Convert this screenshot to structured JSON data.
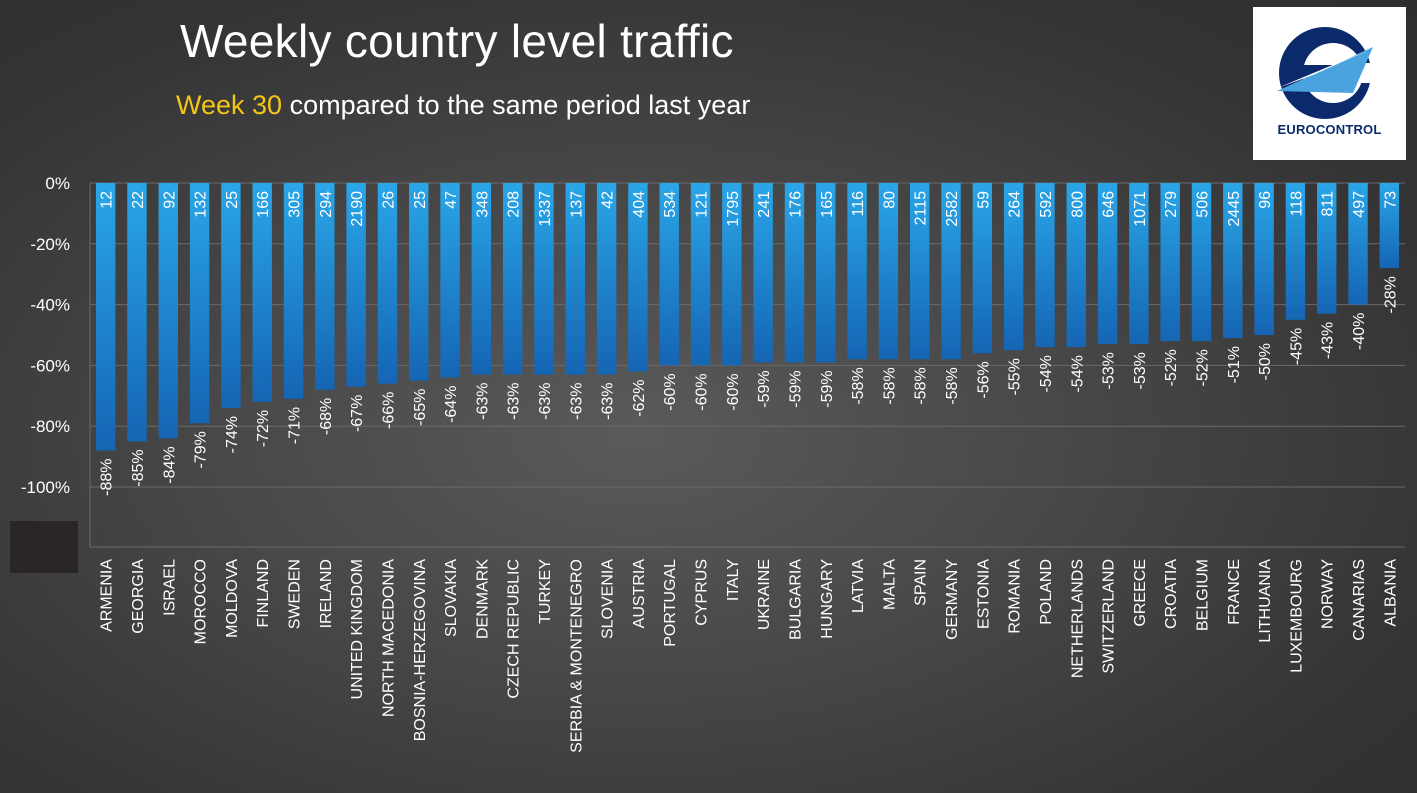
{
  "header": {
    "title": "Weekly country level traffic",
    "subtitle_highlight": "Week 30",
    "subtitle_rest": " compared to the same period last year"
  },
  "logo": {
    "text": "EUROCONTROL",
    "icon": "eurocontrol-logo-icon"
  },
  "colors": {
    "bar_top": "#2aa6e8",
    "bar_bottom": "#1565b3",
    "highlight": "#f5c518",
    "grid": "#6a6a6a"
  },
  "chart_data": {
    "type": "bar",
    "title": "Weekly country level traffic",
    "subtitle": "Week 30 compared to the same period last year",
    "ylim": [
      -100,
      0
    ],
    "yticks": [
      "0%",
      "-20%",
      "-40%",
      "-60%",
      "-80%",
      "-100%"
    ],
    "grid": true,
    "categories": [
      "ARMENIA",
      "GEORGIA",
      "ISRAEL",
      "MOROCCO",
      "MOLDOVA",
      "FINLAND",
      "SWEDEN",
      "IRELAND",
      "UNITED KINGDOM",
      "NORTH MACEDONIA",
      "BOSNIA-HERZEGOVINA",
      "SLOVAKIA",
      "DENMARK",
      "CZECH REPUBLIC",
      "TURKEY",
      "SERBIA & MONTENEGRO",
      "SLOVENIA",
      "AUSTRIA",
      "PORTUGAL",
      "CYPRUS",
      "ITALY",
      "UKRAINE",
      "BULGARIA",
      "HUNGARY",
      "LATVIA",
      "MALTA",
      "SPAIN",
      "GERMANY",
      "ESTONIA",
      "ROMANIA",
      "POLAND",
      "NETHERLANDS",
      "SWITZERLAND",
      "GREECE",
      "CROATIA",
      "BELGIUM",
      "FRANCE",
      "LITHUANIA",
      "LUXEMBOURG",
      "NORWAY",
      "CANARIAS",
      "ALBANIA"
    ],
    "values": [
      -88,
      -85,
      -84,
      -79,
      -74,
      -72,
      -71,
      -68,
      -67,
      -66,
      -65,
      -64,
      -63,
      -63,
      -63,
      -63,
      -63,
      -62,
      -60,
      -60,
      -60,
      -59,
      -59,
      -59,
      -58,
      -58,
      -58,
      -58,
      -56,
      -55,
      -54,
      -54,
      -53,
      -53,
      -52,
      -52,
      -51,
      -50,
      -45,
      -43,
      -40,
      -28
    ],
    "value_labels": [
      "-88%",
      "-85%",
      "-84%",
      "-79%",
      "-74%",
      "-72%",
      "-71%",
      "-68%",
      "-67%",
      "-66%",
      "-65%",
      "-64%",
      "-63%",
      "-63%",
      "-63%",
      "-63%",
      "-63%",
      "-62%",
      "-60%",
      "-60%",
      "-60%",
      "-59%",
      "-59%",
      "-59%",
      "-58%",
      "-58%",
      "-58%",
      "-58%",
      "-56%",
      "-55%",
      "-54%",
      "-54%",
      "-53%",
      "-53%",
      "-52%",
      "-52%",
      "-51%",
      "-50%",
      "-45%",
      "-43%",
      "-40%",
      "-28%"
    ],
    "flights": [
      "12",
      "22",
      "92",
      "132",
      "25",
      "166",
      "305",
      "294",
      "2190",
      "26",
      "25",
      "47",
      "348",
      "208",
      "1337",
      "137",
      "42",
      "404",
      "534",
      "121",
      "1795",
      "241",
      "176",
      "165",
      "116",
      "80",
      "2115",
      "2582",
      "59",
      "264",
      "592",
      "800",
      "646",
      "1071",
      "279",
      "506",
      "2445",
      "96",
      "118",
      "811",
      "497",
      "73"
    ]
  }
}
